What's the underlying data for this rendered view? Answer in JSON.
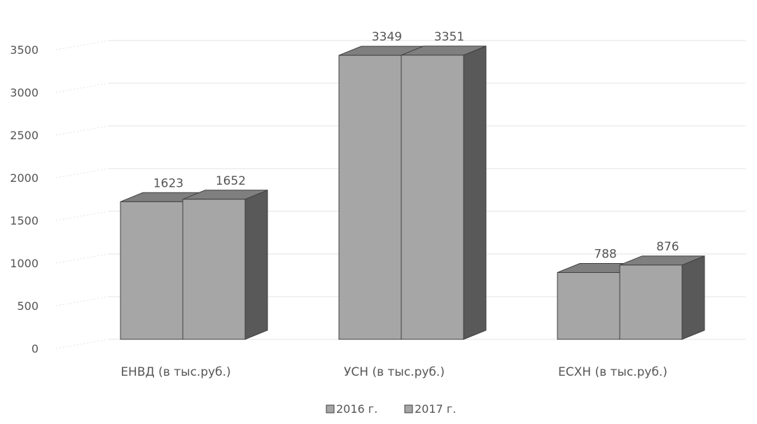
{
  "chart_data": {
    "type": "bar",
    "style": "3d-clustered-column",
    "title": "",
    "xlabel": "",
    "ylabel": "",
    "categories": [
      "ЕНВД (в тыс.руб.)",
      "УСН  (в тыс.руб.)",
      "ЕСХН  (в тыс.руб.)"
    ],
    "series": [
      {
        "name": "2016 г.",
        "values": [
          1623,
          3349,
          788
        ]
      },
      {
        "name": "2017 г.",
        "values": [
          1652,
          3351,
          876
        ]
      }
    ],
    "ylim": [
      0,
      3500
    ],
    "yticks": [
      0,
      500,
      1000,
      1500,
      2000,
      2500,
      3000,
      3500
    ],
    "grid": true,
    "legend": "bottom",
    "data_labels": true,
    "colors": {
      "front": "#a6a6a6",
      "top": "#7f7f7f",
      "side": "#595959",
      "outline": "#404040",
      "grid": "#e3e3e3",
      "text": "#555555"
    }
  }
}
